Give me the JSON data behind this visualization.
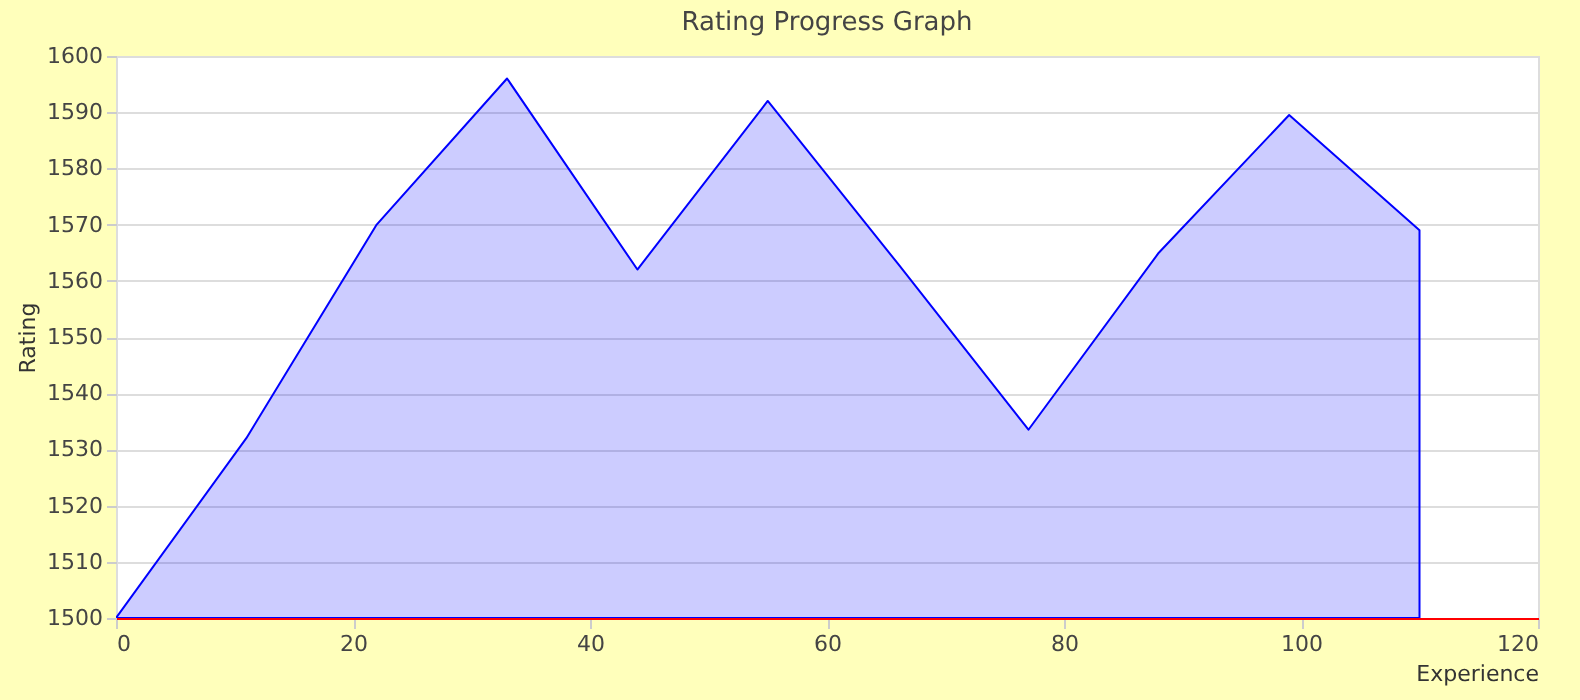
{
  "chart_data": {
    "type": "area",
    "title": "Rating Progress Graph",
    "xlabel": "Experience",
    "ylabel": "Rating",
    "x": [
      0,
      11,
      22,
      33,
      44,
      55,
      66,
      77,
      88,
      99,
      110
    ],
    "series": [
      {
        "color": "#0000ff",
        "values": [
          1500,
          1532,
          1570,
          1596,
          1562,
          1592,
          1563,
          1533.5,
          1565,
          1589.5,
          1569
        ]
      }
    ],
    "xlim": [
      0,
      120
    ],
    "xticks": [
      0,
      20,
      40,
      60,
      80,
      100,
      120
    ],
    "ylim": [
      1500,
      1600
    ],
    "yticks": [
      1500,
      1510,
      1520,
      1530,
      1540,
      1550,
      1560,
      1570,
      1580,
      1590,
      1600
    ],
    "grid": "y"
  }
}
